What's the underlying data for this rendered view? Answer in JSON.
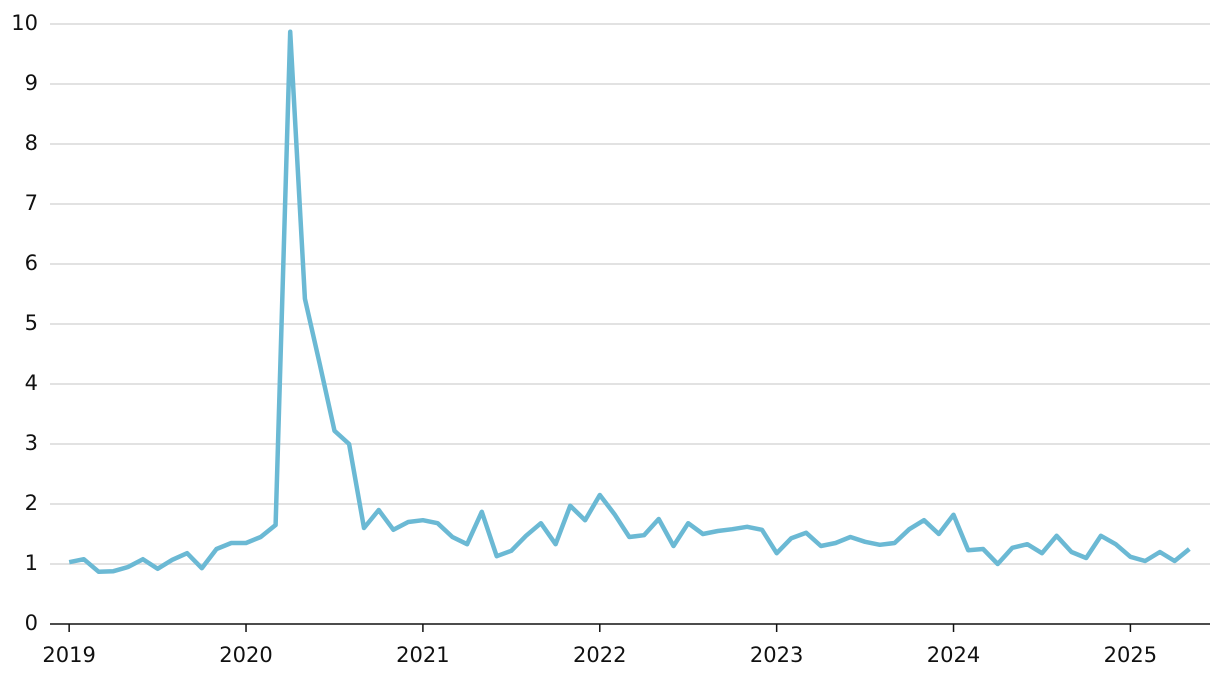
{
  "chart_data": {
    "type": "line",
    "x": [
      2019,
      2019.083,
      2019.167,
      2019.25,
      2019.333,
      2019.417,
      2019.5,
      2019.583,
      2019.667,
      2019.75,
      2019.833,
      2019.917,
      2020,
      2020.083,
      2020.167,
      2020.25,
      2020.333,
      2020.417,
      2020.5,
      2020.583,
      2020.667,
      2020.75,
      2020.833,
      2020.917,
      2021,
      2021.083,
      2021.167,
      2021.25,
      2021.333,
      2021.417,
      2021.5,
      2021.583,
      2021.667,
      2021.75,
      2021.833,
      2021.917,
      2022,
      2022.083,
      2022.167,
      2022.25,
      2022.333,
      2022.417,
      2022.5,
      2022.583,
      2022.667,
      2022.75,
      2022.833,
      2022.917,
      2023,
      2023.083,
      2023.167,
      2023.25,
      2023.333,
      2023.417,
      2023.5,
      2023.583,
      2023.667,
      2023.75,
      2023.833,
      2023.917,
      2024,
      2024.083,
      2024.167,
      2024.25,
      2024.333,
      2024.417,
      2024.5,
      2024.583,
      2024.667,
      2024.75,
      2024.833,
      2024.917,
      2025,
      2025.083,
      2025.167,
      2025.25,
      2025.333
    ],
    "series": [
      {
        "color": "#6bb9d4",
        "values": [
          1.03,
          1.08,
          0.87,
          0.88,
          0.95,
          1.08,
          0.92,
          1.07,
          1.18,
          0.93,
          1.25,
          1.35,
          1.35,
          1.45,
          1.65,
          9.87,
          5.42,
          4.33,
          3.22,
          3.0,
          1.6,
          1.9,
          1.57,
          1.7,
          1.73,
          1.68,
          1.45,
          1.33,
          1.87,
          1.13,
          1.22,
          1.47,
          1.68,
          1.33,
          1.97,
          1.73,
          2.15,
          1.83,
          1.45,
          1.48,
          1.75,
          1.3,
          1.68,
          1.5,
          1.55,
          1.58,
          1.62,
          1.57,
          1.18,
          1.43,
          1.52,
          1.3,
          1.35,
          1.45,
          1.37,
          1.32,
          1.35,
          1.58,
          1.73,
          1.5,
          1.82,
          1.23,
          1.25,
          1.0,
          1.27,
          1.33,
          1.18,
          1.47,
          1.2,
          1.1,
          1.47,
          1.33,
          1.12,
          1.05,
          1.2,
          1.05,
          1.25
        ]
      }
    ],
    "xlim": [
      2018.92,
      2025.45
    ],
    "xticks": [
      2019,
      2020,
      2021,
      2022,
      2023,
      2024,
      2025
    ],
    "ylim": [
      0,
      10
    ],
    "yticks": [
      0,
      1,
      2,
      3,
      4,
      5,
      6,
      7,
      8,
      9,
      10
    ],
    "grid": true
  }
}
